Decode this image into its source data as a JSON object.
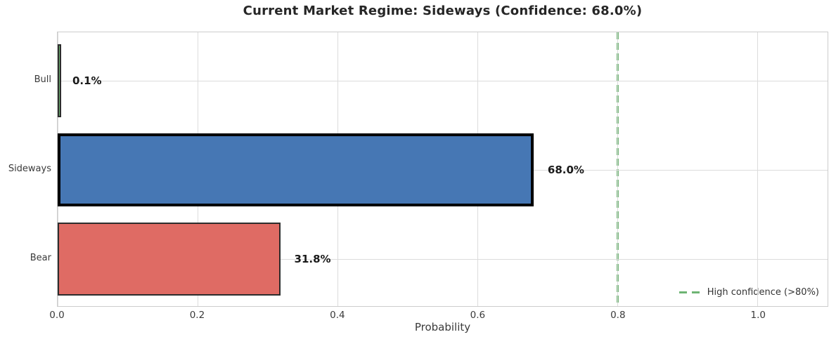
{
  "title": "Current Market Regime: Sideways (Confidence: 68.0%)",
  "chart_data": {
    "type": "bar",
    "orientation": "horizontal",
    "title": "Current Market Regime: Sideways (Confidence: 68.0%)",
    "xlabel": "Probability",
    "ylabel": "",
    "categories": [
      "Bull",
      "Sideways",
      "Bear"
    ],
    "values": [
      0.001,
      0.68,
      0.318
    ],
    "xlim": [
      0,
      1.1
    ],
    "xticks": [
      0,
      0.2,
      0.4,
      0.6,
      0.8,
      1.0
    ],
    "xtick_labels": [
      "0.0",
      "0.2",
      "0.4",
      "0.6",
      "0.8",
      "1.0"
    ],
    "grid": true,
    "bars": [
      {
        "category": "Bull",
        "value": 0.001,
        "label": "0.1%",
        "fill": "#6eb473",
        "edge": "#2d2d2d",
        "edge_width": 2
      },
      {
        "category": "Sideways",
        "value": 0.68,
        "label": "68.0%",
        "fill": "#4677b4",
        "edge": "#000000",
        "edge_width": 4
      },
      {
        "category": "Bear",
        "value": 0.318,
        "label": "31.8%",
        "fill": "#df6b64",
        "edge": "#2d2d2d",
        "edge_width": 2.5
      }
    ],
    "threshold_line": {
      "x": 0.8,
      "style": "dashed",
      "color": "#6eb473",
      "label": "High confidence (>80%)"
    },
    "legend": {
      "position": "lower right",
      "entries": [
        "High confidence (>80%)"
      ]
    }
  }
}
